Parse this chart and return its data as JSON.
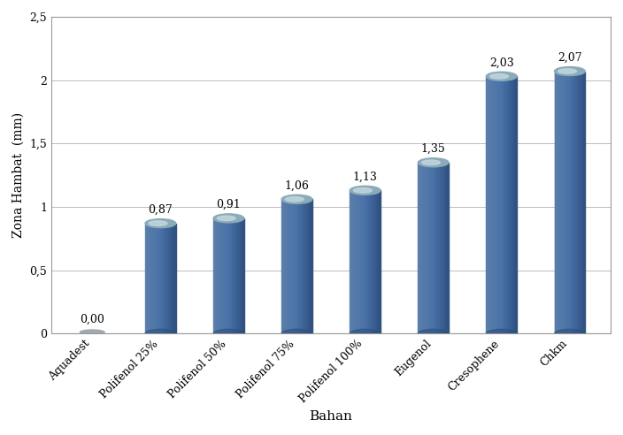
{
  "categories": [
    "Aquadest",
    "Polifenol 25%",
    "Polifenol 50%",
    "Polifenol 75%",
    "Polifenol 100%",
    "Eugenol",
    "Cresophene",
    "Chkm"
  ],
  "values": [
    0.0,
    0.87,
    0.91,
    1.06,
    1.13,
    1.35,
    2.03,
    2.07
  ],
  "labels": [
    "0,00",
    "0,87",
    "0,91",
    "1,06",
    "1,13",
    "1,35",
    "2,03",
    "2,07"
  ],
  "bar_color_left": "#5b7faa",
  "bar_color_mid": "#4a72a8",
  "bar_color_right": "#2e5080",
  "bar_color_top_outer": "#8aabb8",
  "bar_color_top_inner": "#c5d8e0",
  "aquadest_ellipse_color": "#a0a8b0",
  "xlabel": "Bahan",
  "ylabel": "Zona Hambat  (mm)",
  "ylim": [
    0,
    2.5
  ],
  "yticks": [
    0,
    0.5,
    1.0,
    1.5,
    2.0,
    2.5
  ],
  "ytick_labels": [
    "0",
    "0,5",
    "1",
    "1,5",
    "2",
    "2,5"
  ],
  "background_color": "#ffffff",
  "grid_color": "#bbbbbb",
  "label_fontsize": 10,
  "tick_fontsize": 9,
  "floor_color": "#e8e8e8",
  "floor_edge_color": "#aaaaaa"
}
